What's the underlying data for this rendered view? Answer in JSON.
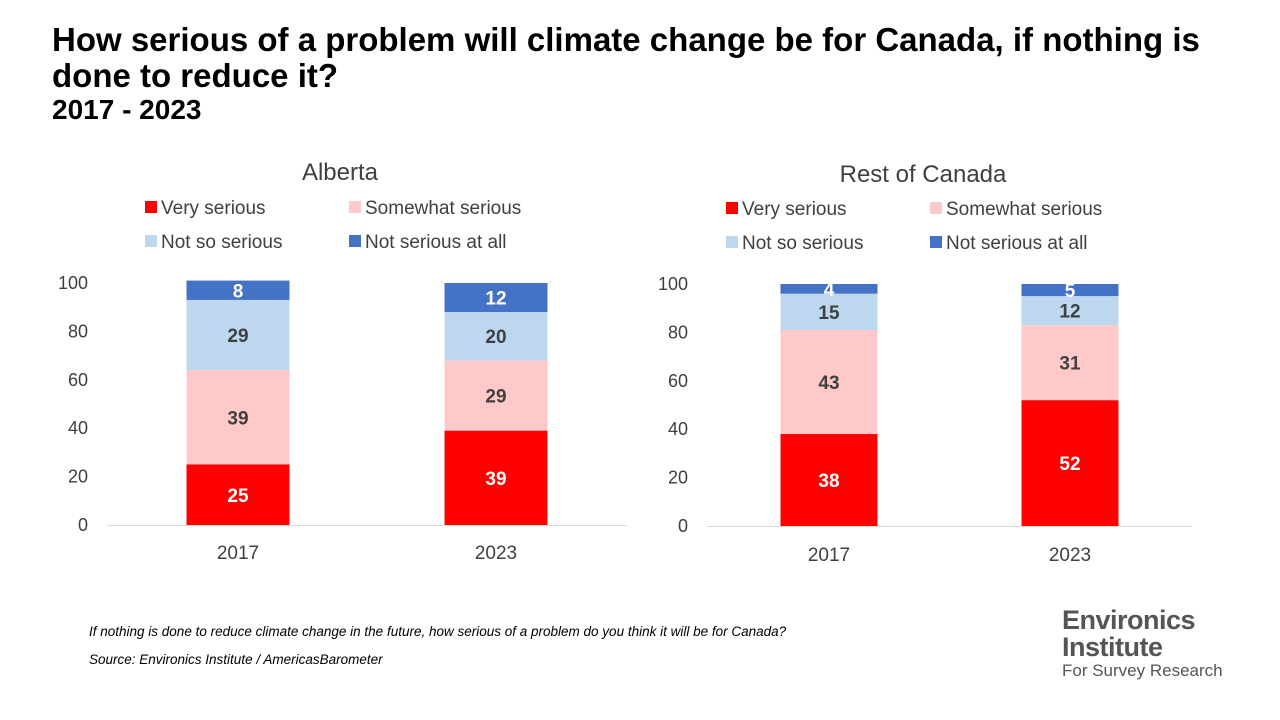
{
  "header": {
    "title": "How serious of a problem will climate change be for Canada, if nothing is done to reduce it?",
    "subtitle": "2017 - 2023"
  },
  "colors": {
    "very_serious": "#FF0000",
    "somewhat_serious": "#FFC9C9",
    "not_so_serious": "#BDD7EE",
    "not_serious_at_all": "#4472C4"
  },
  "chart_data": [
    {
      "type": "bar",
      "stacked": true,
      "title": "Alberta",
      "categories": [
        "2017",
        "2023"
      ],
      "ylim": [
        0,
        100
      ],
      "yticks": [
        0,
        20,
        40,
        60,
        80,
        100
      ],
      "legend_position": "top",
      "series": [
        {
          "name": "Very serious",
          "values": [
            25,
            39
          ],
          "color": "#FF0000"
        },
        {
          "name": "Somewhat serious",
          "values": [
            39,
            29
          ],
          "color": "#FFC9C9"
        },
        {
          "name": "Not so serious",
          "values": [
            29,
            20
          ],
          "color": "#BDD7EE"
        },
        {
          "name": "Not serious at all",
          "values": [
            8,
            12
          ],
          "color": "#4472C4"
        }
      ]
    },
    {
      "type": "bar",
      "stacked": true,
      "title": "Rest of Canada",
      "categories": [
        "2017",
        "2023"
      ],
      "ylim": [
        0,
        100
      ],
      "yticks": [
        0,
        20,
        40,
        60,
        80,
        100
      ],
      "legend_position": "top",
      "series": [
        {
          "name": "Very serious",
          "values": [
            38,
            52
          ],
          "color": "#FF0000"
        },
        {
          "name": "Somewhat serious",
          "values": [
            43,
            31
          ],
          "color": "#FFC9C9"
        },
        {
          "name": "Not so serious",
          "values": [
            15,
            12
          ],
          "color": "#BDD7EE"
        },
        {
          "name": "Not serious at all",
          "values": [
            4,
            5
          ],
          "color": "#4472C4"
        }
      ]
    }
  ],
  "footnotes": {
    "question": "If nothing is done to reduce climate change in the future, how serious of a problem do you think it will be for Canada?",
    "source": "Source: Environics Institute / AmericasBarometer"
  },
  "logo": {
    "line1": "Environics",
    "line2": "Institute",
    "line3": "For Survey Research"
  }
}
